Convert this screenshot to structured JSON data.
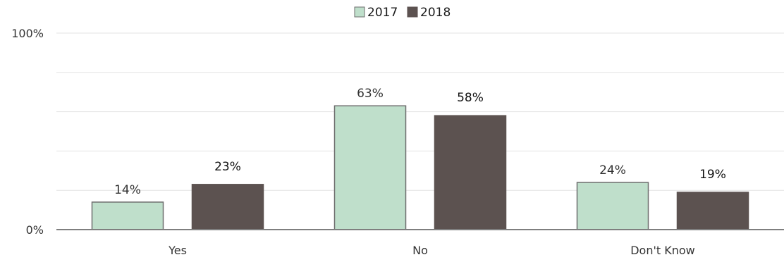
{
  "chart_data": {
    "type": "bar",
    "categories": [
      "Yes",
      "No",
      "Don't Know"
    ],
    "series": [
      {
        "name": "2017",
        "values": [
          14,
          63,
          24
        ],
        "labels": [
          "14%",
          "63%",
          "24%"
        ],
        "color": "#bfdfcb",
        "border": "#6e6e6e"
      },
      {
        "name": "2018",
        "values": [
          23,
          58,
          19
        ],
        "labels": [
          "23%",
          "58%",
          "19%"
        ],
        "color": "#5c5250",
        "border": "#5c5250"
      }
    ],
    "ylim": [
      0,
      100
    ],
    "y_ticks": [
      {
        "value": 0,
        "label": "0%"
      },
      {
        "value": 100,
        "label": "100%"
      }
    ],
    "gridlines": [
      20,
      40,
      60,
      80,
      100
    ],
    "grid": true,
    "legend": "top-center",
    "title": "",
    "xlabel": "",
    "ylabel": ""
  }
}
